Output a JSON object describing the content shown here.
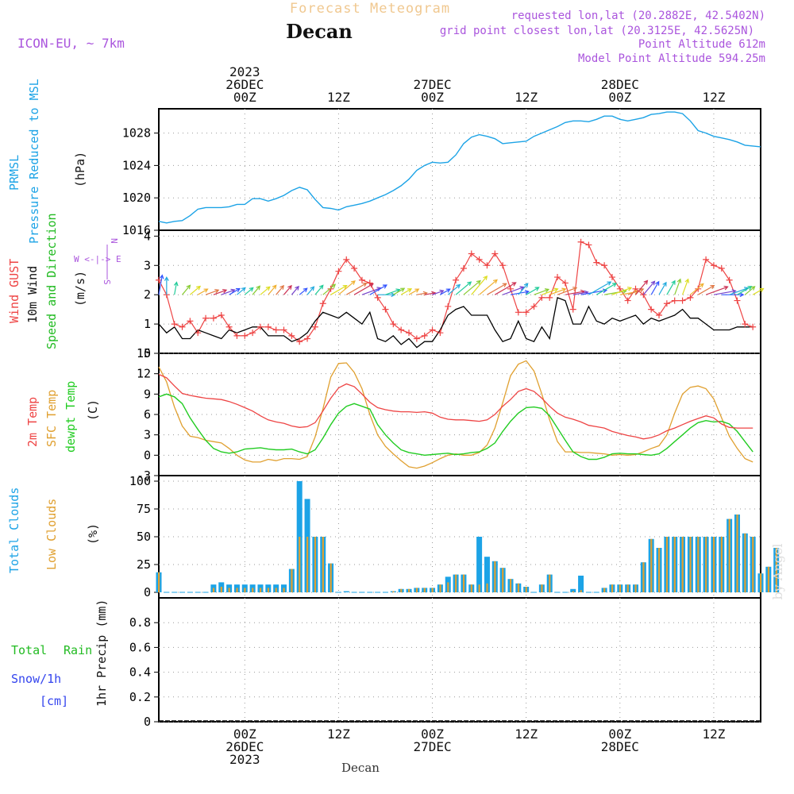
{
  "header": {
    "product": "Forecast Meteogram",
    "location": "Decan",
    "model": "ICON-EU, ~ 7km",
    "requested": "requested lon,lat (20.2882E, 42.5402N)",
    "gridpoint": "grid point closest lon,lat (20.3125E, 42.5625N)",
    "point_altitude": "Point Altitude 612m",
    "model_altitude": "Model Point Altitude 594.25m",
    "footer_location": "Decan",
    "signature": "by Angel"
  },
  "colors": {
    "pressure": "#1ca3e6",
    "gust": "#ee4444",
    "wind": "#000000",
    "dir_label": "#22bb22",
    "temp": "#ee4444",
    "sfc": "#e0a030",
    "dew": "#22cc22",
    "total_cloud": "#1ca3e6",
    "low_cloud": "#e0a030",
    "rain": "#22bb22",
    "snow": "#3344ee",
    "compass": "#aa55dd",
    "header_purple": "#aa55dd",
    "product": "#f0c890",
    "grid": "#888888"
  },
  "time_axis": {
    "top_labels": [
      {
        "t": 0,
        "lines": [
          "2023",
          "26DEC",
          "00Z"
        ]
      },
      {
        "t": 12,
        "lines": [
          "12Z"
        ]
      },
      {
        "t": 24,
        "lines": [
          "27DEC",
          "00Z"
        ]
      },
      {
        "t": 36,
        "lines": [
          "12Z"
        ]
      },
      {
        "t": 48,
        "lines": [
          "28DEC",
          "00Z"
        ]
      },
      {
        "t": 60,
        "lines": [
          "12Z"
        ]
      }
    ],
    "bottom_labels": [
      {
        "t": 0,
        "lines": [
          "00Z",
          "26DEC",
          "2023"
        ]
      },
      {
        "t": 12,
        "lines": [
          "12Z"
        ]
      },
      {
        "t": 24,
        "lines": [
          "00Z",
          "27DEC"
        ]
      },
      {
        "t": 36,
        "lines": [
          "12Z"
        ]
      },
      {
        "t": 48,
        "lines": [
          "00Z",
          "28DEC"
        ]
      },
      {
        "t": 60,
        "lines": [
          "12Z"
        ]
      }
    ]
  },
  "labels": {
    "pressure": {
      "side1": "PRMSL",
      "side2": "Pressure Reduced to MSL",
      "unit": "(hPa)"
    },
    "wind": {
      "gust": "Wind GUST",
      "wind": "10m Wind",
      "dir": "Speed and Direction",
      "unit": "(m/s)",
      "compass_n": "N",
      "compass_ew": "W <-|-> E",
      "compass_s": "S"
    },
    "temp": {
      "t2m": "2m Temp",
      "sfc": "SFC Temp",
      "dew": "dewpt Temp",
      "unit": "(C)"
    },
    "cloud": {
      "total": "Total Clouds",
      "low": "Low Clouds",
      "unit": "(%)"
    },
    "precip": {
      "total": "Total",
      "rain": "Rain",
      "snow": "Snow/1h",
      "snow_unit": "[cm]",
      "axis": "1hr Precip (mm)"
    }
  },
  "chart_data": [
    {
      "type": "line",
      "name": "pressure",
      "x_start_hours": -11,
      "x_step_hours": 1,
      "x_end_hours": 66,
      "ylim": [
        1016,
        1031
      ],
      "yticks": [
        1016,
        1020,
        1024,
        1028
      ],
      "grid": true,
      "series": [
        {
          "name": "PRMSL",
          "values": [
            1017.1,
            1016.9,
            1017.1,
            1017.2,
            1017.8,
            1018.6,
            1018.8,
            1018.8,
            1018.8,
            1018.9,
            1019.2,
            1019.2,
            1019.9,
            1019.9,
            1019.6,
            1019.9,
            1020.3,
            1020.9,
            1021.3,
            1021.0,
            1019.8,
            1018.8,
            1018.7,
            1018.5,
            1018.9,
            1019.1,
            1019.3,
            1019.6,
            1020.0,
            1020.4,
            1020.9,
            1021.5,
            1022.3,
            1023.4,
            1024.0,
            1024.4,
            1024.3,
            1024.4,
            1025.3,
            1026.7,
            1027.5,
            1027.8,
            1027.6,
            1027.3,
            1026.7,
            1026.8,
            1026.9,
            1027.0,
            1027.6,
            1028.0,
            1028.4,
            1028.8,
            1029.3,
            1029.5,
            1029.5,
            1029.4,
            1029.7,
            1030.1,
            1030.1,
            1029.7,
            1029.5,
            1029.7,
            1029.9,
            1030.3,
            1030.4,
            1030.6,
            1030.6,
            1030.4,
            1029.5,
            1028.3,
            1028.0,
            1027.6,
            1027.4,
            1027.2,
            1026.9,
            1026.5,
            1026.4,
            1026.3
          ]
        }
      ]
    },
    {
      "type": "line",
      "name": "wind",
      "x_start_hours": -11,
      "x_step_hours": 1,
      "ylim": [
        0,
        4.2
      ],
      "yticks": [
        0,
        1,
        2,
        3,
        4
      ],
      "grid": true,
      "series": [
        {
          "name": "Wind GUST",
          "values": [
            2.5,
            2.0,
            1.0,
            0.9,
            1.1,
            0.7,
            1.2,
            1.2,
            1.3,
            0.9,
            0.6,
            0.6,
            0.7,
            0.9,
            0.9,
            0.8,
            0.8,
            0.6,
            0.4,
            0.5,
            0.9,
            1.7,
            2.2,
            2.8,
            3.2,
            2.9,
            2.5,
            2.4,
            1.9,
            1.5,
            1.0,
            0.8,
            0.7,
            0.5,
            0.6,
            0.8,
            0.7,
            1.6,
            2.5,
            2.9,
            3.4,
            3.2,
            3.0,
            3.4,
            3.0,
            2.2,
            1.4,
            1.4,
            1.6,
            1.9,
            1.9,
            2.6,
            2.4,
            1.5,
            3.8,
            3.7,
            3.1,
            3.0,
            2.6,
            2.2,
            1.8,
            2.2,
            2.0,
            1.5,
            1.3,
            1.7,
            1.8,
            1.8,
            1.9,
            2.2,
            3.2,
            3.0,
            2.9,
            2.5,
            1.8,
            1.0,
            0.9
          ]
        },
        {
          "name": "10m Wind",
          "values": [
            1.0,
            0.7,
            0.9,
            0.5,
            0.5,
            0.8,
            0.7,
            0.6,
            0.5,
            0.8,
            0.7,
            0.8,
            0.9,
            0.9,
            0.6,
            0.6,
            0.6,
            0.4,
            0.5,
            0.7,
            1.1,
            1.4,
            1.3,
            1.2,
            1.4,
            1.2,
            1.0,
            1.4,
            0.5,
            0.4,
            0.6,
            0.3,
            0.5,
            0.2,
            0.4,
            0.4,
            0.8,
            1.3,
            1.5,
            1.6,
            1.3,
            1.3,
            1.3,
            0.8,
            0.4,
            0.5,
            1.1,
            0.5,
            0.4,
            0.9,
            0.5,
            1.9,
            1.8,
            1.0,
            1.0,
            1.6,
            1.1,
            1.0,
            1.2,
            1.1,
            1.2,
            1.3,
            1.0,
            1.2,
            1.1,
            1.2,
            1.3,
            1.5,
            1.2,
            1.2,
            1.0,
            0.8,
            0.8,
            0.8,
            0.9,
            0.9,
            0.9
          ]
        }
      ],
      "wind_direction_deg": [
        190,
        180,
        190,
        220,
        230,
        240,
        250,
        250,
        250,
        240,
        230,
        230,
        220,
        230,
        220,
        220,
        220,
        220,
        230,
        220,
        220,
        230,
        240,
        230,
        240,
        240,
        250,
        240,
        270,
        250,
        240,
        240,
        240,
        260,
        260,
        250,
        240,
        230,
        230,
        230,
        220,
        230,
        240,
        240,
        250,
        260,
        220,
        240,
        250,
        250,
        250,
        250,
        260,
        260,
        260,
        240,
        240,
        260,
        250,
        260,
        250,
        220,
        220,
        210,
        210,
        210,
        200,
        200,
        230,
        240,
        250,
        260,
        270,
        250,
        240,
        230,
        240
      ]
    },
    {
      "type": "line",
      "name": "temperature",
      "x_start_hours": -11,
      "x_step_hours": 1,
      "ylim": [
        -3,
        15
      ],
      "yticks": [
        -3,
        0,
        3,
        6,
        9,
        12,
        15
      ],
      "grid": true,
      "series": [
        {
          "name": "2m Temp",
          "values": [
            11.9,
            11.4,
            10.2,
            9.1,
            8.8,
            8.6,
            8.4,
            8.3,
            8.2,
            7.9,
            7.5,
            7.0,
            6.5,
            5.8,
            5.2,
            4.9,
            4.7,
            4.3,
            4.1,
            4.2,
            4.8,
            6.5,
            8.4,
            9.9,
            10.5,
            10.1,
            9.0,
            7.8,
            7.0,
            6.7,
            6.5,
            6.4,
            6.4,
            6.3,
            6.4,
            6.2,
            5.6,
            5.3,
            5.2,
            5.2,
            5.1,
            5.0,
            5.2,
            6.0,
            7.2,
            8.2,
            9.4,
            9.8,
            9.4,
            8.4,
            7.2,
            6.2,
            5.6,
            5.3,
            4.9,
            4.4,
            4.2,
            4.0,
            3.5,
            3.2,
            2.9,
            2.7,
            2.4,
            2.6,
            3.0,
            3.6,
            4.0,
            4.5,
            5.0,
            5.4,
            5.8,
            5.5,
            4.6,
            4.1,
            4.0,
            4.0,
            4.0
          ]
        },
        {
          "name": "SFC Temp",
          "values": [
            13.0,
            10.8,
            7.1,
            4.3,
            2.8,
            2.6,
            2.2,
            2.0,
            1.8,
            1.0,
            0.0,
            -0.7,
            -1.0,
            -1.0,
            -0.6,
            -0.8,
            -0.5,
            -0.5,
            -0.6,
            -0.2,
            2.7,
            6.8,
            11.5,
            13.5,
            13.6,
            12.2,
            9.8,
            6.0,
            3.0,
            1.3,
            0.2,
            -0.8,
            -1.7,
            -1.9,
            -1.6,
            -1.1,
            -0.5,
            0.0,
            0.2,
            0.0,
            0.0,
            0.4,
            1.5,
            4.0,
            7.7,
            11.7,
            13.4,
            13.9,
            12.4,
            9.0,
            5.2,
            2.0,
            0.5,
            0.5,
            0.4,
            0.4,
            0.3,
            0.2,
            0.0,
            0.1,
            0.0,
            0.1,
            0.5,
            1.0,
            1.4,
            3.0,
            6.2,
            9.0,
            10.0,
            10.2,
            9.8,
            8.3,
            5.5,
            2.8,
            1.0,
            -0.5,
            -1.0
          ]
        },
        {
          "name": "dewpt Temp",
          "values": [
            8.6,
            9.0,
            8.6,
            7.6,
            5.5,
            3.8,
            2.2,
            1.0,
            0.5,
            0.3,
            0.5,
            0.9,
            1.0,
            1.1,
            0.9,
            0.8,
            0.8,
            0.9,
            0.5,
            0.2,
            0.8,
            2.5,
            4.5,
            6.2,
            7.2,
            7.6,
            7.2,
            6.8,
            4.5,
            3.0,
            1.8,
            0.8,
            0.4,
            0.2,
            0.0,
            0.1,
            0.2,
            0.3,
            0.1,
            0.2,
            0.4,
            0.5,
            1.0,
            1.8,
            3.5,
            5.0,
            6.2,
            7.0,
            7.1,
            6.9,
            5.8,
            4.0,
            2.2,
            0.5,
            -0.2,
            -0.6,
            -0.6,
            -0.3,
            0.2,
            0.3,
            0.2,
            0.2,
            0.1,
            0.0,
            0.2,
            1.0,
            2.0,
            3.0,
            4.0,
            4.8,
            5.1,
            4.9,
            5.0,
            4.6,
            3.5,
            2.0,
            0.5
          ]
        }
      ]
    },
    {
      "type": "bar",
      "name": "clouds",
      "x_start_hours": -11,
      "x_step_hours": 1,
      "ylim": [
        -5,
        105
      ],
      "yticks": [
        0,
        25,
        50,
        75,
        100
      ],
      "grid": true,
      "series": [
        {
          "name": "Total Clouds",
          "values": [
            18,
            0,
            0,
            0,
            0,
            0,
            0,
            7,
            9,
            7,
            7,
            7,
            7,
            7,
            7,
            7,
            7,
            21,
            100,
            84,
            50,
            50,
            26,
            0,
            1,
            0,
            0,
            0,
            0,
            0,
            1,
            3,
            3,
            4,
            4,
            4,
            7,
            14,
            16,
            16,
            7,
            50,
            32,
            28,
            22,
            12,
            8,
            5,
            0,
            7,
            16,
            0,
            0,
            3,
            15,
            0,
            0,
            4,
            7,
            7,
            7,
            7,
            27,
            48,
            40,
            50,
            50,
            50,
            50,
            50,
            50,
            50,
            50,
            66,
            70,
            53,
            50,
            17,
            23,
            40
          ]
        },
        {
          "name": "Low Clouds",
          "values": [
            18,
            0,
            0,
            0,
            0,
            0,
            0,
            4,
            5,
            4,
            4,
            4,
            4,
            4,
            4,
            4,
            4,
            21,
            50,
            50,
            50,
            50,
            26,
            0,
            0,
            0,
            0,
            0,
            0,
            0,
            1,
            3,
            3,
            4,
            4,
            4,
            7,
            9,
            16,
            16,
            7,
            7,
            8,
            28,
            22,
            12,
            8,
            5,
            0,
            7,
            16,
            0,
            0,
            1,
            2,
            0,
            0,
            4,
            7,
            7,
            7,
            7,
            27,
            48,
            40,
            50,
            50,
            50,
            50,
            50,
            50,
            50,
            50,
            66,
            70,
            53,
            50,
            17,
            23,
            40
          ]
        }
      ]
    },
    {
      "type": "bar",
      "name": "precipitation",
      "ylim": [
        0,
        1.0
      ],
      "yticks": [
        0,
        0.2,
        0.4,
        0.6,
        0.8
      ],
      "grid": true,
      "series": [
        {
          "name": "Total Rain",
          "values": []
        },
        {
          "name": "Snow/1h",
          "values": []
        }
      ]
    }
  ]
}
